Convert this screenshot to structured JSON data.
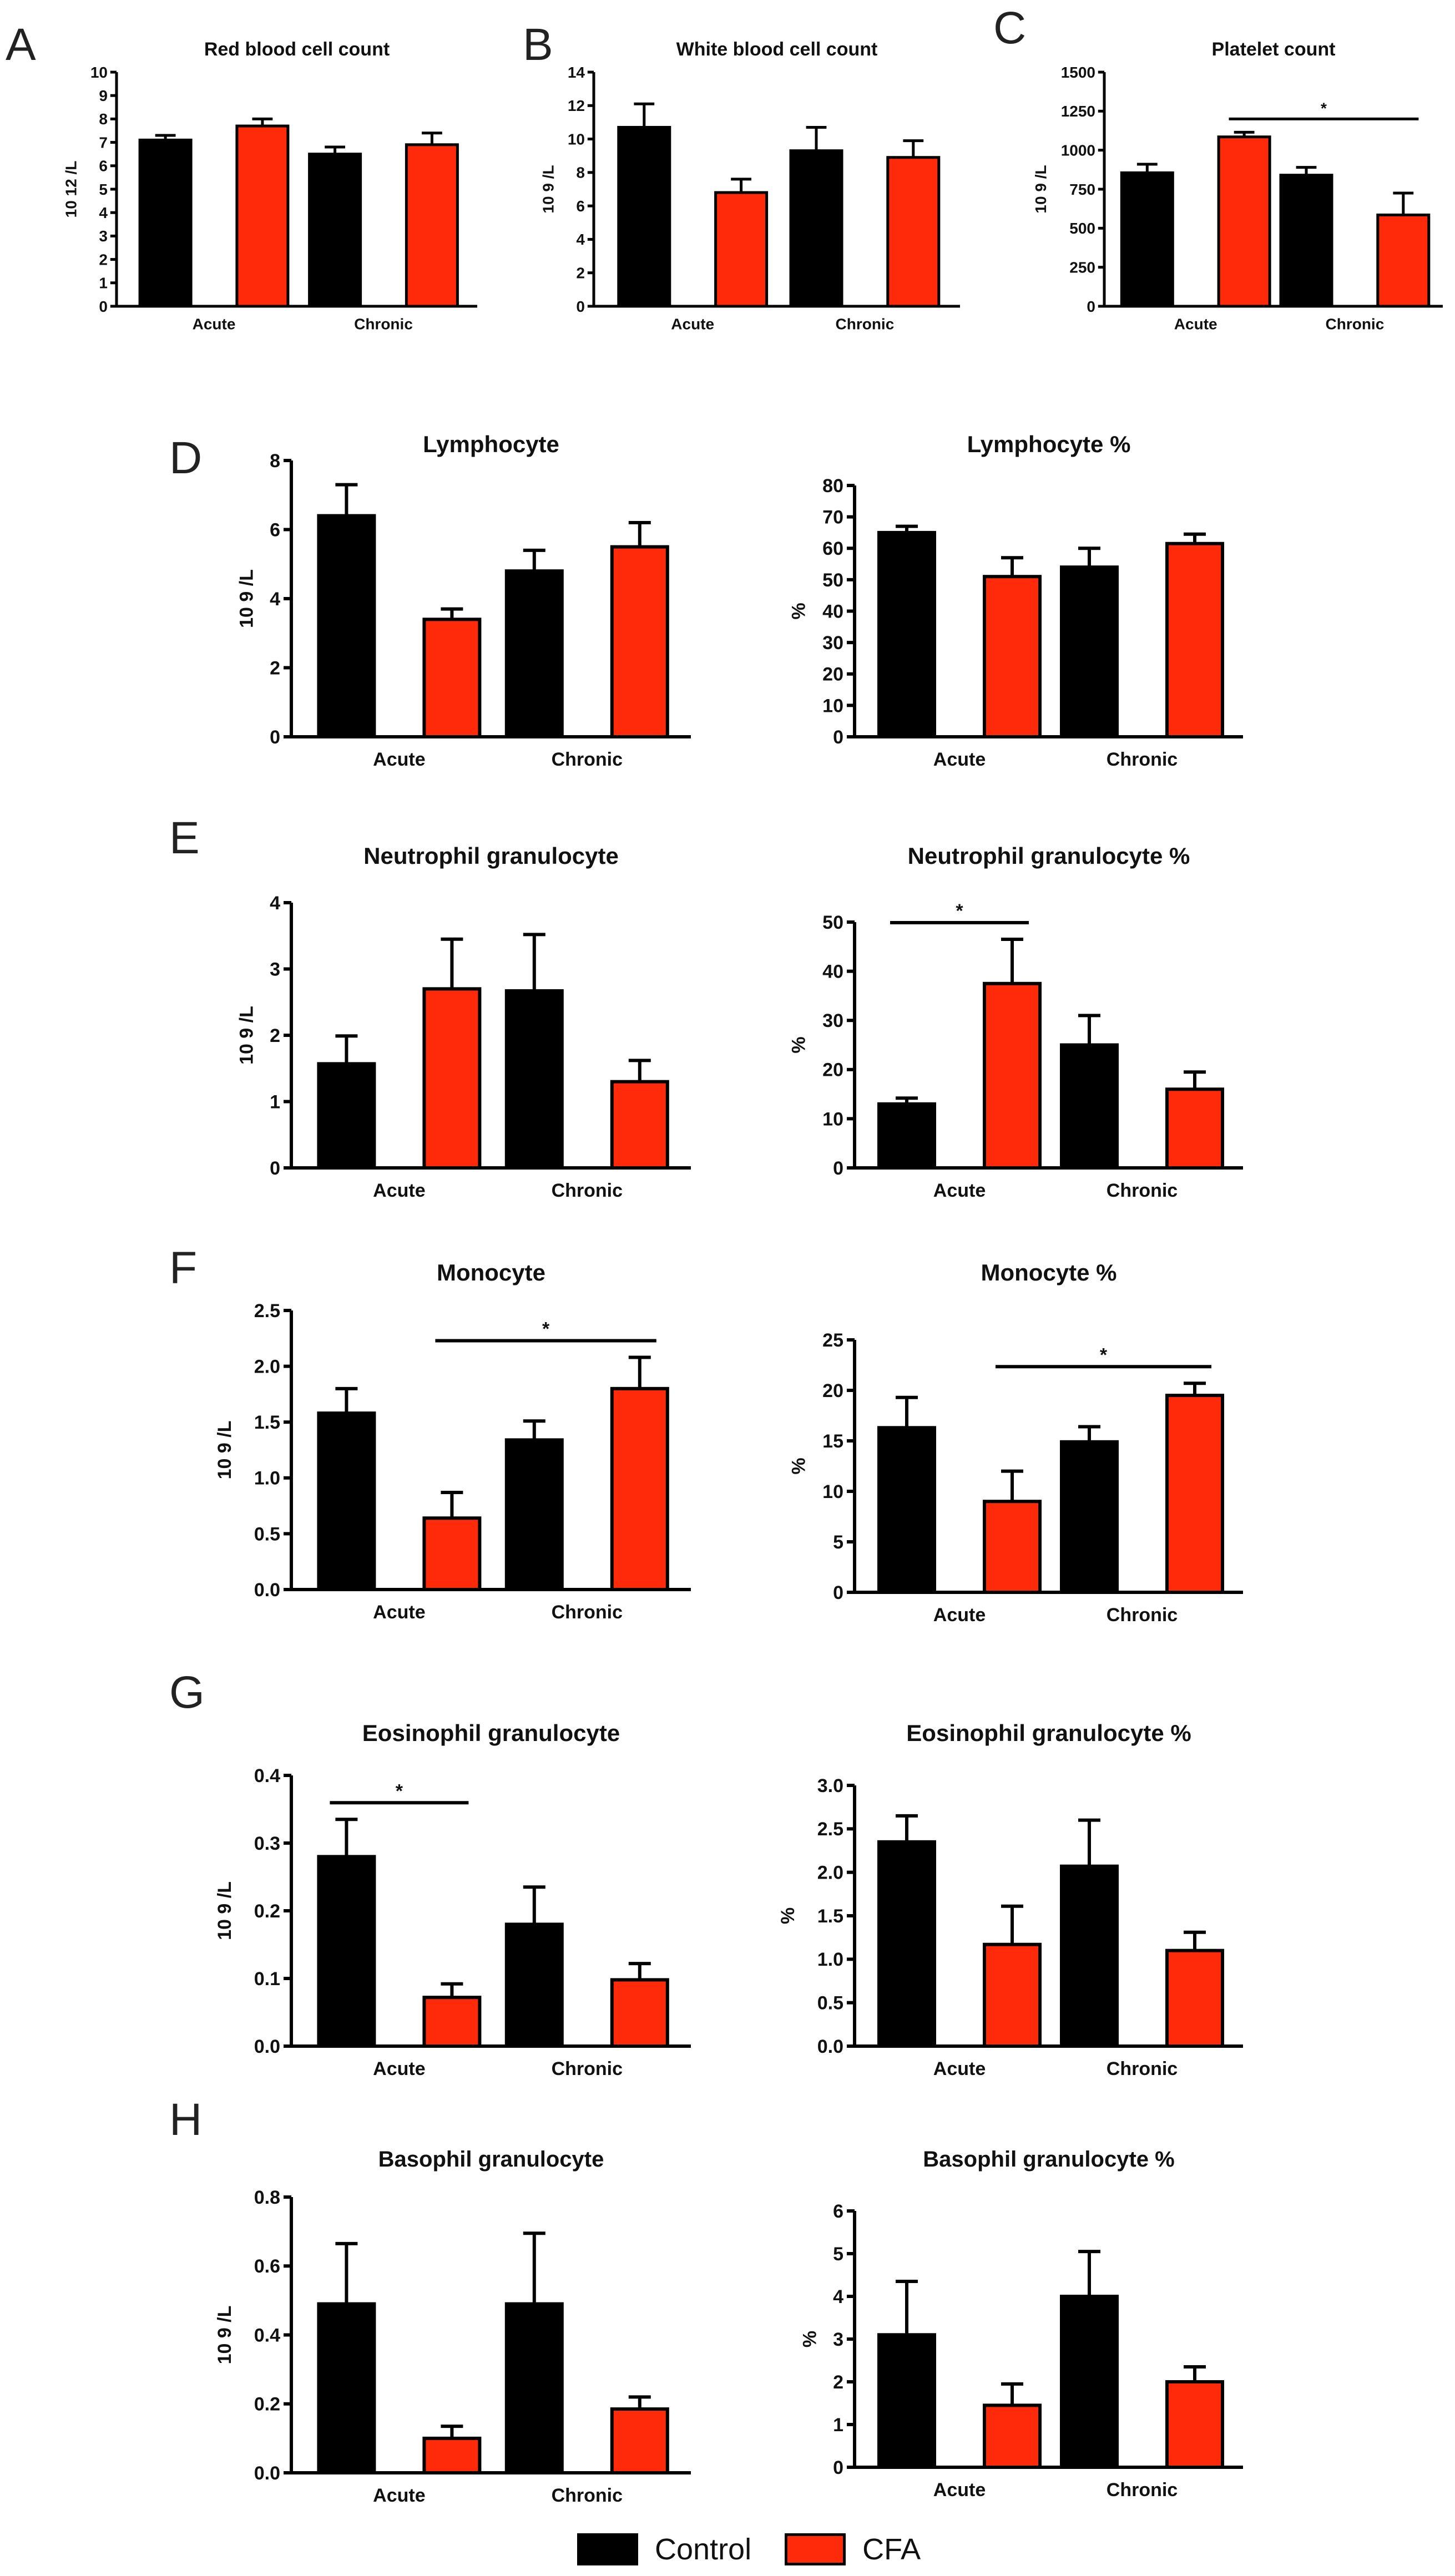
{
  "colors": {
    "control": "#000000",
    "cfa": "#ff2a0a"
  },
  "panel_letters": [
    "A",
    "B",
    "C",
    "D",
    "E",
    "F",
    "G",
    "H"
  ],
  "legend": {
    "control_label": "Control",
    "cfa_label": "CFA"
  },
  "chart_data": [
    {
      "id": "rbc",
      "type": "bar",
      "title": "Red blood cell count",
      "ylabel": "10 12 /L",
      "categories": [
        "Acute",
        "Chronic"
      ],
      "ylim": [
        0,
        10
      ],
      "yticks": [
        "0",
        "1",
        "2",
        "3",
        "4",
        "5",
        "6",
        "7",
        "8",
        "9",
        "10"
      ],
      "series": [
        {
          "name": "Control",
          "values": [
            7.1,
            6.5
          ],
          "errors": [
            0.2,
            0.3
          ]
        },
        {
          "name": "CFA",
          "values": [
            7.7,
            6.9
          ],
          "errors": [
            0.3,
            0.5
          ]
        }
      ],
      "sig": []
    },
    {
      "id": "wbc",
      "type": "bar",
      "title": "White blood cell count",
      "ylabel": "10 9 /L",
      "categories": [
        "Acute",
        "Chronic"
      ],
      "ylim": [
        0,
        14
      ],
      "yticks": [
        "0",
        "2",
        "4",
        "6",
        "8",
        "10",
        "12",
        "14"
      ],
      "series": [
        {
          "name": "Control",
          "values": [
            10.7,
            9.3
          ],
          "errors": [
            1.4,
            1.4
          ]
        },
        {
          "name": "CFA",
          "values": [
            6.8,
            8.9
          ],
          "errors": [
            0.8,
            1.0
          ]
        }
      ],
      "sig": []
    },
    {
      "id": "plt",
      "type": "bar",
      "title": "Platelet count",
      "ylabel": "10 9 /L",
      "categories": [
        "Acute",
        "Chronic"
      ],
      "ylim": [
        0,
        1500
      ],
      "yticks": [
        "0",
        "250",
        "500",
        "750",
        "1000",
        "1250",
        "1500"
      ],
      "series": [
        {
          "name": "Control",
          "values": [
            855,
            840
          ],
          "errors": [
            55,
            50
          ]
        },
        {
          "name": "CFA",
          "values": [
            1085,
            585
          ],
          "errors": [
            30,
            140
          ]
        }
      ],
      "sig": [
        {
          "from": [
            0,
            1
          ],
          "to": [
            1,
            1
          ],
          "label": "*"
        }
      ]
    },
    {
      "id": "lym",
      "type": "bar",
      "title": "Lymphocyte",
      "ylabel": "10 9 /L",
      "categories": [
        "Acute",
        "Chronic"
      ],
      "ylim": [
        0,
        8
      ],
      "yticks": [
        "0",
        "2",
        "4",
        "6",
        "8"
      ],
      "series": [
        {
          "name": "Control",
          "values": [
            6.4,
            4.8
          ],
          "errors": [
            0.9,
            0.6
          ]
        },
        {
          "name": "CFA",
          "values": [
            3.4,
            5.5
          ],
          "errors": [
            0.3,
            0.7
          ]
        }
      ],
      "sig": []
    },
    {
      "id": "lymp",
      "type": "bar",
      "title": "Lymphocyte %",
      "ylabel": "%",
      "categories": [
        "Acute",
        "Chronic"
      ],
      "ylim": [
        0,
        80
      ],
      "yticks": [
        "0",
        "10",
        "20",
        "30",
        "40",
        "50",
        "60",
        "70",
        "80"
      ],
      "series": [
        {
          "name": "Control",
          "values": [
            65,
            54
          ],
          "errors": [
            2,
            6
          ]
        },
        {
          "name": "CFA",
          "values": [
            51,
            61.5
          ],
          "errors": [
            6,
            3
          ]
        }
      ],
      "sig": []
    },
    {
      "id": "neu",
      "type": "bar",
      "title": "Neutrophil granulocyte",
      "ylabel": "10 9 /L",
      "categories": [
        "Acute",
        "Chronic"
      ],
      "ylim": [
        0,
        4
      ],
      "yticks": [
        "0",
        "1",
        "2",
        "3",
        "4"
      ],
      "series": [
        {
          "name": "Control",
          "values": [
            1.57,
            2.67
          ],
          "errors": [
            0.42,
            0.85
          ]
        },
        {
          "name": "CFA",
          "values": [
            2.7,
            1.3
          ],
          "errors": [
            0.75,
            0.32
          ]
        }
      ],
      "sig": []
    },
    {
      "id": "neup",
      "type": "bar",
      "title": "Neutrophil granulocyte %",
      "ylabel": "%",
      "categories": [
        "Acute",
        "Chronic"
      ],
      "ylim": [
        0,
        50
      ],
      "yticks": [
        "0",
        "10",
        "20",
        "30",
        "40",
        "50"
      ],
      "series": [
        {
          "name": "Control",
          "values": [
            13,
            25
          ],
          "errors": [
            1.2,
            6
          ]
        },
        {
          "name": "CFA",
          "values": [
            37.5,
            16
          ],
          "errors": [
            9,
            3.5
          ]
        }
      ],
      "sig": [
        {
          "from": [
            0,
            0
          ],
          "to": [
            0,
            1
          ],
          "label": "*"
        }
      ]
    },
    {
      "id": "mon",
      "type": "bar",
      "title": "Monocyte",
      "ylabel": "10 9 /L",
      "categories": [
        "Acute",
        "Chronic"
      ],
      "ylim": [
        0,
        2.5
      ],
      "yticks": [
        "0.0",
        "0.5",
        "1.0",
        "1.5",
        "2.0",
        "2.5"
      ],
      "series": [
        {
          "name": "Control",
          "values": [
            1.58,
            1.34
          ],
          "errors": [
            0.22,
            0.17
          ]
        },
        {
          "name": "CFA",
          "values": [
            0.64,
            1.8
          ],
          "errors": [
            0.23,
            0.28
          ]
        }
      ],
      "sig": [
        {
          "from": [
            0,
            1
          ],
          "to": [
            1,
            1
          ],
          "label": "*"
        }
      ]
    },
    {
      "id": "monp",
      "type": "bar",
      "title": "Monocyte %",
      "ylabel": "%",
      "categories": [
        "Acute",
        "Chronic"
      ],
      "ylim": [
        0,
        25
      ],
      "yticks": [
        "0",
        "5",
        "10",
        "15",
        "20",
        "25"
      ],
      "series": [
        {
          "name": "Control",
          "values": [
            16.3,
            14.9
          ],
          "errors": [
            3,
            1.5
          ]
        },
        {
          "name": "CFA",
          "values": [
            9,
            19.5
          ],
          "errors": [
            3,
            1.2
          ]
        }
      ],
      "sig": [
        {
          "from": [
            0,
            1
          ],
          "to": [
            1,
            1
          ],
          "label": "*"
        }
      ]
    },
    {
      "id": "eos",
      "type": "bar",
      "title": "Eosinophil granulocyte",
      "ylabel": "10 9 /L",
      "categories": [
        "Acute",
        "Chronic"
      ],
      "ylim": [
        0,
        0.4
      ],
      "yticks": [
        "0.0",
        "0.1",
        "0.2",
        "0.3",
        "0.4"
      ],
      "series": [
        {
          "name": "Control",
          "values": [
            0.28,
            0.18
          ],
          "errors": [
            0.055,
            0.055
          ]
        },
        {
          "name": "CFA",
          "values": [
            0.072,
            0.098
          ],
          "errors": [
            0.02,
            0.024
          ]
        }
      ],
      "sig": [
        {
          "from": [
            0,
            0
          ],
          "to": [
            0,
            1
          ],
          "label": "*"
        }
      ]
    },
    {
      "id": "eosp",
      "type": "bar",
      "title": "Eosinophil granulocyte %",
      "ylabel": "%",
      "categories": [
        "Acute",
        "Chronic"
      ],
      "ylim": [
        0,
        3
      ],
      "yticks": [
        "0.0",
        "0.5",
        "1.0",
        "1.5",
        "2.0",
        "2.5",
        "3.0"
      ],
      "series": [
        {
          "name": "Control",
          "values": [
            2.35,
            2.07
          ],
          "errors": [
            0.3,
            0.53
          ]
        },
        {
          "name": "CFA",
          "values": [
            1.17,
            1.1
          ],
          "errors": [
            0.44,
            0.21
          ]
        }
      ],
      "sig": []
    },
    {
      "id": "bas",
      "type": "bar",
      "title": "Basophil granulocyte",
      "ylabel": "10 9 /L",
      "categories": [
        "Acute",
        "Chronic"
      ],
      "ylim": [
        0,
        0.8
      ],
      "yticks": [
        "0.0",
        "0.2",
        "0.4",
        "0.6",
        "0.8"
      ],
      "series": [
        {
          "name": "Control",
          "values": [
            0.49,
            0.49
          ],
          "errors": [
            0.175,
            0.205
          ]
        },
        {
          "name": "CFA",
          "values": [
            0.1,
            0.185
          ],
          "errors": [
            0.035,
            0.035
          ]
        }
      ],
      "sig": []
    },
    {
      "id": "basp",
      "type": "bar",
      "title": "Basophil granulocyte %",
      "ylabel": "%",
      "categories": [
        "Acute",
        "Chronic"
      ],
      "ylim": [
        0,
        6
      ],
      "yticks": [
        "0",
        "1",
        "2",
        "3",
        "4",
        "5",
        "6"
      ],
      "series": [
        {
          "name": "Control",
          "values": [
            3.1,
            4.0
          ],
          "errors": [
            1.25,
            1.05
          ]
        },
        {
          "name": "CFA",
          "values": [
            1.45,
            2.0
          ],
          "errors": [
            0.5,
            0.35
          ]
        }
      ],
      "sig": []
    }
  ]
}
